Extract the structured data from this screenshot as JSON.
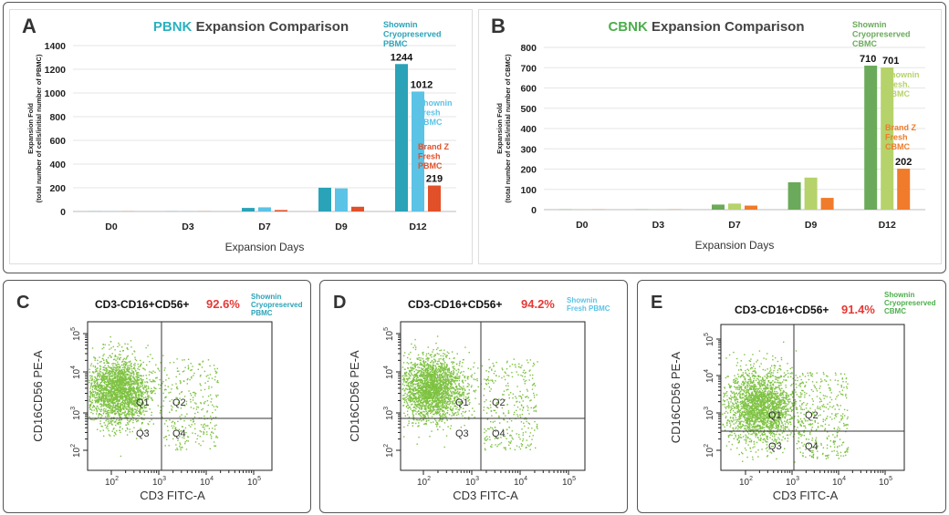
{
  "colors": {
    "shownin_cryo_pbmc": "#2aa3b8",
    "shownin_fresh_pbmc": "#5bc3e6",
    "brandz_fresh_pbmc": "#e2502a",
    "shownin_cryo_cbmc": "#6aaa5a",
    "shownin_fresh_cbmc": "#b5d36a",
    "brandz_fresh_cbmc": "#f07b2a",
    "pbnk_title": "#2ab1bf",
    "cbnk_title": "#4cae4c",
    "percent_red": "#e53935",
    "dot_green": "#7ec242"
  },
  "chart_data": [
    {
      "type": "bar",
      "panel_letter": "A",
      "title_prefix": "PBNK",
      "title_rest": " Expansion Comparison",
      "xlabel": "Expansion Days",
      "ylabel_line1": "Expansion Fold",
      "ylabel_line2": "(total number of cells/initial number of PBMC)",
      "ylim": [
        0,
        1400
      ],
      "yticks": [
        "0",
        "200",
        "400",
        "600",
        "800",
        "1000",
        "1200",
        "1400"
      ],
      "categories": [
        "D0",
        "D3",
        "D7",
        "D9",
        "D12"
      ],
      "series": [
        {
          "name": "Shownin Cryopreserved PBMC",
          "values": [
            1,
            1,
            30,
            200,
            1244
          ]
        },
        {
          "name": "Shownin Fresh PBMC",
          "values": [
            1,
            1,
            35,
            195,
            1012
          ]
        },
        {
          "name": "Brand Z Fresh PBMC",
          "values": [
            1,
            1,
            12,
            40,
            219
          ]
        }
      ],
      "data_labels": [
        "1244",
        "1012",
        "219"
      ],
      "legend_labels": [
        [
          "Shownin",
          "Cryopreserved",
          "PBMC"
        ],
        [
          "Shownin",
          "Fresh",
          "PBMC"
        ],
        [
          "Brand Z",
          "Fresh",
          "PBMC"
        ]
      ]
    },
    {
      "type": "bar",
      "panel_letter": "B",
      "title_prefix": "CBNK",
      "title_rest": " Expansion Comparison",
      "xlabel": "Expansion Days",
      "ylabel_line1": "Expansion Fold",
      "ylabel_line2": "(total number of cells/initial number of CBMC)",
      "ylim": [
        0,
        800
      ],
      "yticks": [
        "0",
        "100",
        "200",
        "300",
        "400",
        "500",
        "600",
        "700",
        "800"
      ],
      "categories": [
        "D0",
        "D3",
        "D7",
        "D9",
        "D12"
      ],
      "series": [
        {
          "name": "Shownin Cryopreserved CBMC",
          "values": [
            1,
            1,
            25,
            135,
            710
          ]
        },
        {
          "name": "Shownin Fresh CBMC",
          "values": [
            1,
            1,
            30,
            158,
            701
          ]
        },
        {
          "name": "Brand Z Fresh CBMC",
          "values": [
            1,
            1,
            20,
            58,
            202
          ]
        }
      ],
      "data_labels": [
        "710",
        "701",
        "202"
      ],
      "legend_labels": [
        [
          "Shownin",
          "Cryopreserved",
          "CBMC"
        ],
        [
          "Shownin",
          "Fresh.",
          "CBMC"
        ],
        [
          "Brand Z",
          "Fresh",
          "CBMC"
        ]
      ]
    },
    {
      "type": "scatter",
      "panel_letter": "C",
      "gate": "CD3-CD16+CD56+",
      "percent": "92.6%",
      "sample_lines": [
        "Shownin",
        "Cryopreserved",
        "PBMC"
      ],
      "sample_color": "#2aa3b8",
      "xlabel": "CD3 FITC-A",
      "ylabel": "CD16CD56 PE-A",
      "xticks": [
        "10",
        "10",
        "10",
        "10"
      ],
      "xtick_exps": [
        "2",
        "3",
        "4",
        "5"
      ],
      "yticks": [
        "10",
        "10",
        "10",
        "10"
      ],
      "ytick_exps": [
        "2",
        "3",
        "4",
        "5"
      ],
      "quadrants": [
        "Q1",
        "Q2",
        "Q3",
        "Q4"
      ]
    },
    {
      "type": "scatter",
      "panel_letter": "D",
      "gate": "CD3-CD16+CD56+",
      "percent": "94.2%",
      "sample_lines": [
        "Shownin",
        "Fresh PBMC"
      ],
      "sample_color": "#5bc3e6",
      "xlabel": "CD3 FITC-A",
      "ylabel": "CD16CD56 PE-A",
      "xticks": [
        "10",
        "10",
        "10",
        "10"
      ],
      "xtick_exps": [
        "2",
        "3",
        "4",
        "5"
      ],
      "yticks": [
        "10",
        "10",
        "10",
        "10"
      ],
      "ytick_exps": [
        "2",
        "3",
        "4",
        "5"
      ],
      "quadrants": [
        "Q1",
        "Q2",
        "Q3",
        "Q4"
      ]
    },
    {
      "type": "scatter",
      "panel_letter": "E",
      "gate": "CD3-CD16+CD56+",
      "percent": "91.4%",
      "sample_lines": [
        "Shownin",
        "Cryopreserved",
        "CBMC"
      ],
      "sample_color": "#4cae4c",
      "xlabel": "CD3 FITC-A",
      "ylabel": "CD16CD56 PE-A",
      "xticks": [
        "10",
        "10",
        "10",
        "10"
      ],
      "xtick_exps": [
        "2",
        "3",
        "4",
        "5"
      ],
      "yticks": [
        "10",
        "10",
        "10",
        "10"
      ],
      "ytick_exps": [
        "2",
        "3",
        "4",
        "5"
      ],
      "quadrants": [
        "Q1",
        "Q2",
        "Q3",
        "Q4"
      ]
    }
  ]
}
